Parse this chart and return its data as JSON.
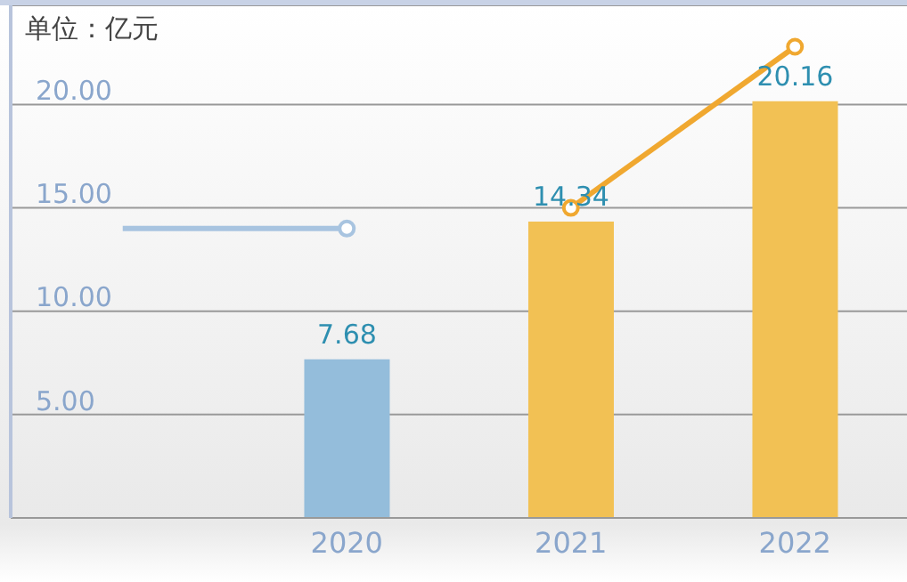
{
  "chart_data": {
    "type": "bar",
    "title": "单位：亿元",
    "categories": [
      null,
      "2020",
      "2021",
      "2022"
    ],
    "series": [
      {
        "colors": [
          null,
          "#94bddb",
          "#f2c154",
          "#f2c154"
        ],
        "values": [
          null,
          7.68,
          14.34,
          20.16
        ],
        "value_labels": [
          null,
          "7.68",
          "14.34",
          "20.16"
        ]
      },
      {
        "type": "line",
        "color": "#a8c4e0",
        "values": [
          14.0,
          14.0,
          null,
          null
        ]
      },
      {
        "type": "line",
        "color": "#f0a830",
        "values": [
          null,
          null,
          15.0,
          22.8
        ]
      }
    ],
    "ylim": [
      0,
      24.8
    ],
    "yticks": [
      {
        "value": 5,
        "label": "5.00"
      },
      {
        "value": 10,
        "label": "10.00"
      },
      {
        "value": 15,
        "label": "15.00"
      },
      {
        "value": 20,
        "label": "20.00"
      }
    ],
    "grid": "y",
    "marker": "circle",
    "legend": false
  }
}
